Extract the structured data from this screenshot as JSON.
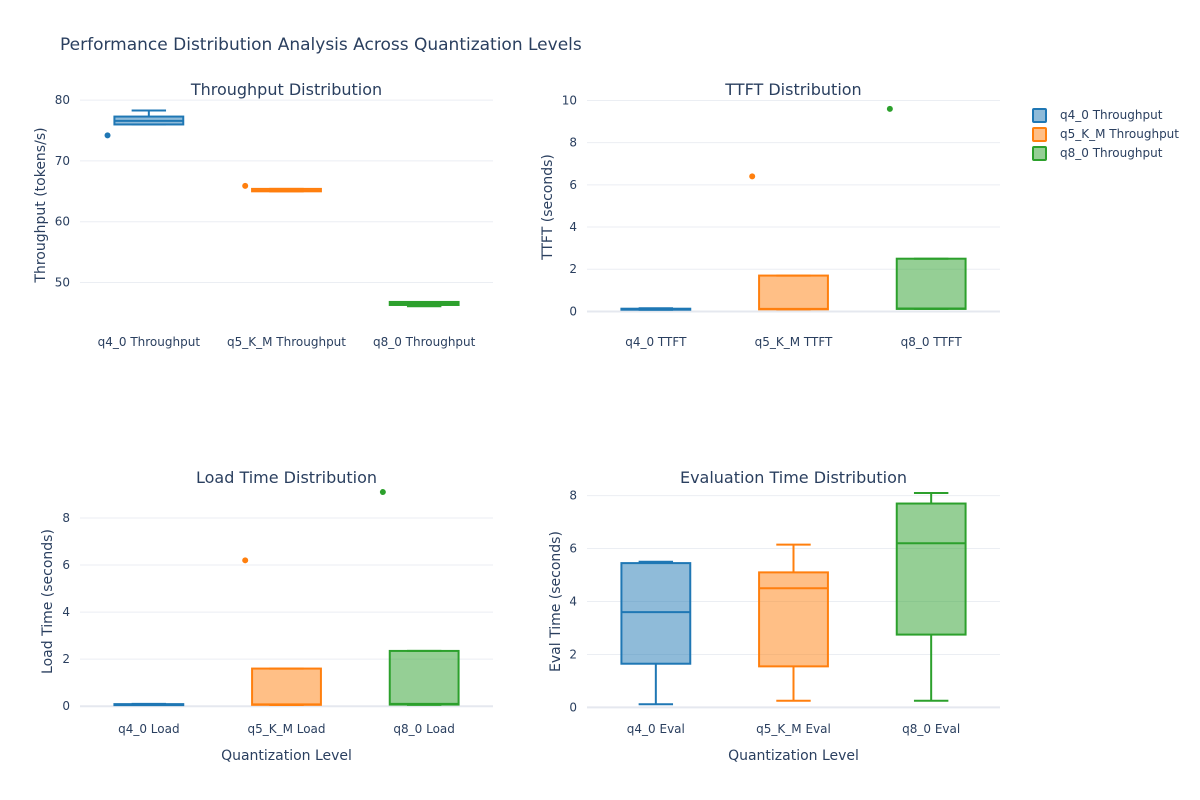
{
  "title": "Performance Distribution Analysis Across Quantization Levels",
  "legend": {
    "placement": "top-right",
    "items": [
      {
        "label": "q4_0 Throughput",
        "color": "#1f77b4"
      },
      {
        "label": "q5_K_M Throughput",
        "color": "#ff7f0e"
      },
      {
        "label": "q8_0 Throughput",
        "color": "#2ca02c"
      }
    ]
  },
  "chart_data": [
    {
      "type": "box",
      "title": "Throughput Distribution",
      "xlabel": "",
      "ylabel": "Throughput (tokens/s)",
      "ylim": [
        43.5,
        82
      ],
      "yticks": [
        50,
        60,
        70,
        80
      ],
      "grid": true,
      "series": [
        {
          "category": "q4_0 Throughput",
          "color": "#1f77b4",
          "min": 76.0,
          "q1": 76.0,
          "median": 76.6,
          "q3": 77.3,
          "max": 78.3,
          "outliers": [
            74.2
          ]
        },
        {
          "category": "q5_K_M Throughput",
          "color": "#ff7f0e",
          "min": 65.0,
          "q1": 65.0,
          "median": 65.1,
          "q3": 65.4,
          "max": 65.4,
          "outliers": [
            65.9
          ]
        },
        {
          "category": "q8_0 Throughput",
          "color": "#2ca02c",
          "min": 46.1,
          "q1": 46.3,
          "median": 46.5,
          "q3": 46.8,
          "max": 46.8,
          "outliers": []
        }
      ]
    },
    {
      "type": "box",
      "title": "TTFT Distribution",
      "xlabel": "",
      "ylabel": "TTFT (seconds)",
      "ylim": [
        -0.5,
        10.4
      ],
      "yticks": [
        0,
        2,
        4,
        6,
        8,
        10
      ],
      "grid": true,
      "series": [
        {
          "category": "q4_0 TTFT",
          "color": "#1f77b4",
          "min": 0.08,
          "q1": 0.1,
          "median": 0.11,
          "q3": 0.13,
          "max": 0.15,
          "outliers": []
        },
        {
          "category": "q5_K_M TTFT",
          "color": "#ff7f0e",
          "min": 0.1,
          "q1": 0.1,
          "median": 0.12,
          "q3": 1.7,
          "max": 1.7,
          "outliers": [
            6.4
          ]
        },
        {
          "category": "q8_0 TTFT",
          "color": "#2ca02c",
          "min": 0.12,
          "q1": 0.12,
          "median": 0.14,
          "q3": 2.5,
          "max": 2.5,
          "outliers": [
            9.6
          ]
        }
      ]
    },
    {
      "type": "box",
      "title": "Load Time Distribution",
      "xlabel": "Quantization Level",
      "ylabel": "Load Time (seconds)",
      "ylim": [
        -0.5,
        9.4
      ],
      "yticks": [
        0,
        2,
        4,
        6,
        8
      ],
      "grid": true,
      "series": [
        {
          "category": "q4_0 Load",
          "color": "#1f77b4",
          "min": 0.05,
          "q1": 0.06,
          "median": 0.07,
          "q3": 0.09,
          "max": 0.1,
          "outliers": []
        },
        {
          "category": "q5_K_M Load",
          "color": "#ff7f0e",
          "min": 0.05,
          "q1": 0.06,
          "median": 0.08,
          "q3": 1.6,
          "max": 1.6,
          "outliers": [
            6.2
          ]
        },
        {
          "category": "q8_0 Load",
          "color": "#2ca02c",
          "min": 0.06,
          "q1": 0.07,
          "median": 0.1,
          "q3": 2.35,
          "max": 2.35,
          "outliers": [
            9.1
          ]
        }
      ]
    },
    {
      "type": "box",
      "title": "Evaluation Time Distribution",
      "xlabel": "Quantization Level",
      "ylabel": "Eval Time (seconds)",
      "ylim": [
        -0.4,
        8.4
      ],
      "yticks": [
        0,
        2,
        4,
        6,
        8
      ],
      "grid": true,
      "series": [
        {
          "category": "q4_0 Eval",
          "color": "#1f77b4",
          "min": 0.12,
          "q1": 1.65,
          "median": 3.6,
          "q3": 5.45,
          "max": 5.5,
          "outliers": []
        },
        {
          "category": "q5_K_M Eval",
          "color": "#ff7f0e",
          "min": 0.25,
          "q1": 1.55,
          "median": 4.5,
          "q3": 5.1,
          "max": 6.15,
          "outliers": []
        },
        {
          "category": "q8_0 Eval",
          "color": "#2ca02c",
          "min": 0.25,
          "q1": 2.75,
          "median": 6.2,
          "q3": 7.7,
          "max": 8.1,
          "outliers": []
        }
      ]
    }
  ]
}
